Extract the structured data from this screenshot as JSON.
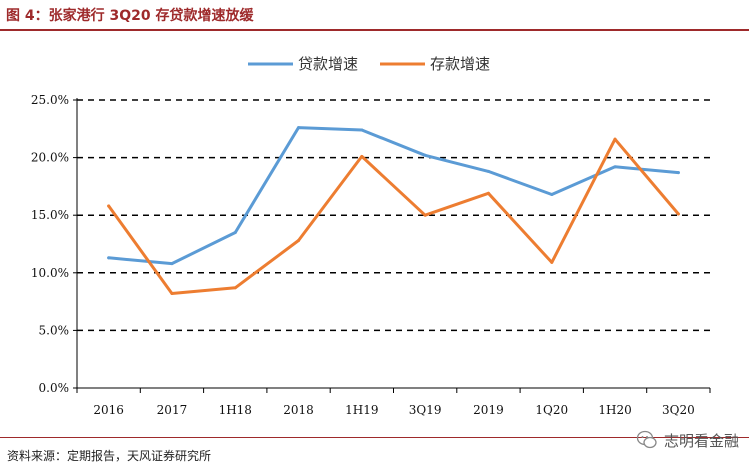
{
  "header": {
    "title": "图 4：张家港行 3Q20 存贷款增速放缓"
  },
  "footer": {
    "source": "资料来源：定期报告，天风证券研究所",
    "watermark": "志明看金融"
  },
  "colors": {
    "loan": "#5b9bd5",
    "deposit": "#ed7d31",
    "accent": "#9e2a2b"
  },
  "chart_data": {
    "type": "line",
    "categories": [
      "2016",
      "2017",
      "1H18",
      "2018",
      "1H19",
      "3Q19",
      "2019",
      "1Q20",
      "1H20",
      "3Q20"
    ],
    "series": [
      {
        "name": "贷款增速",
        "color": "#5b9bd5",
        "values": [
          11.3,
          10.8,
          13.5,
          22.6,
          22.4,
          20.2,
          18.8,
          16.8,
          19.2,
          18.7
        ]
      },
      {
        "name": "存款增速",
        "color": "#ed7d31",
        "values": [
          15.8,
          8.2,
          8.7,
          12.8,
          20.1,
          15.0,
          16.9,
          10.9,
          21.6,
          15.1
        ]
      }
    ],
    "yticks": [
      "25.0%",
      "20.0%",
      "15.0%",
      "10.0%",
      "5.0%",
      "0.0%"
    ],
    "ylim": [
      0,
      25
    ],
    "grid": "dashed horizontal",
    "legend": "top-center"
  }
}
